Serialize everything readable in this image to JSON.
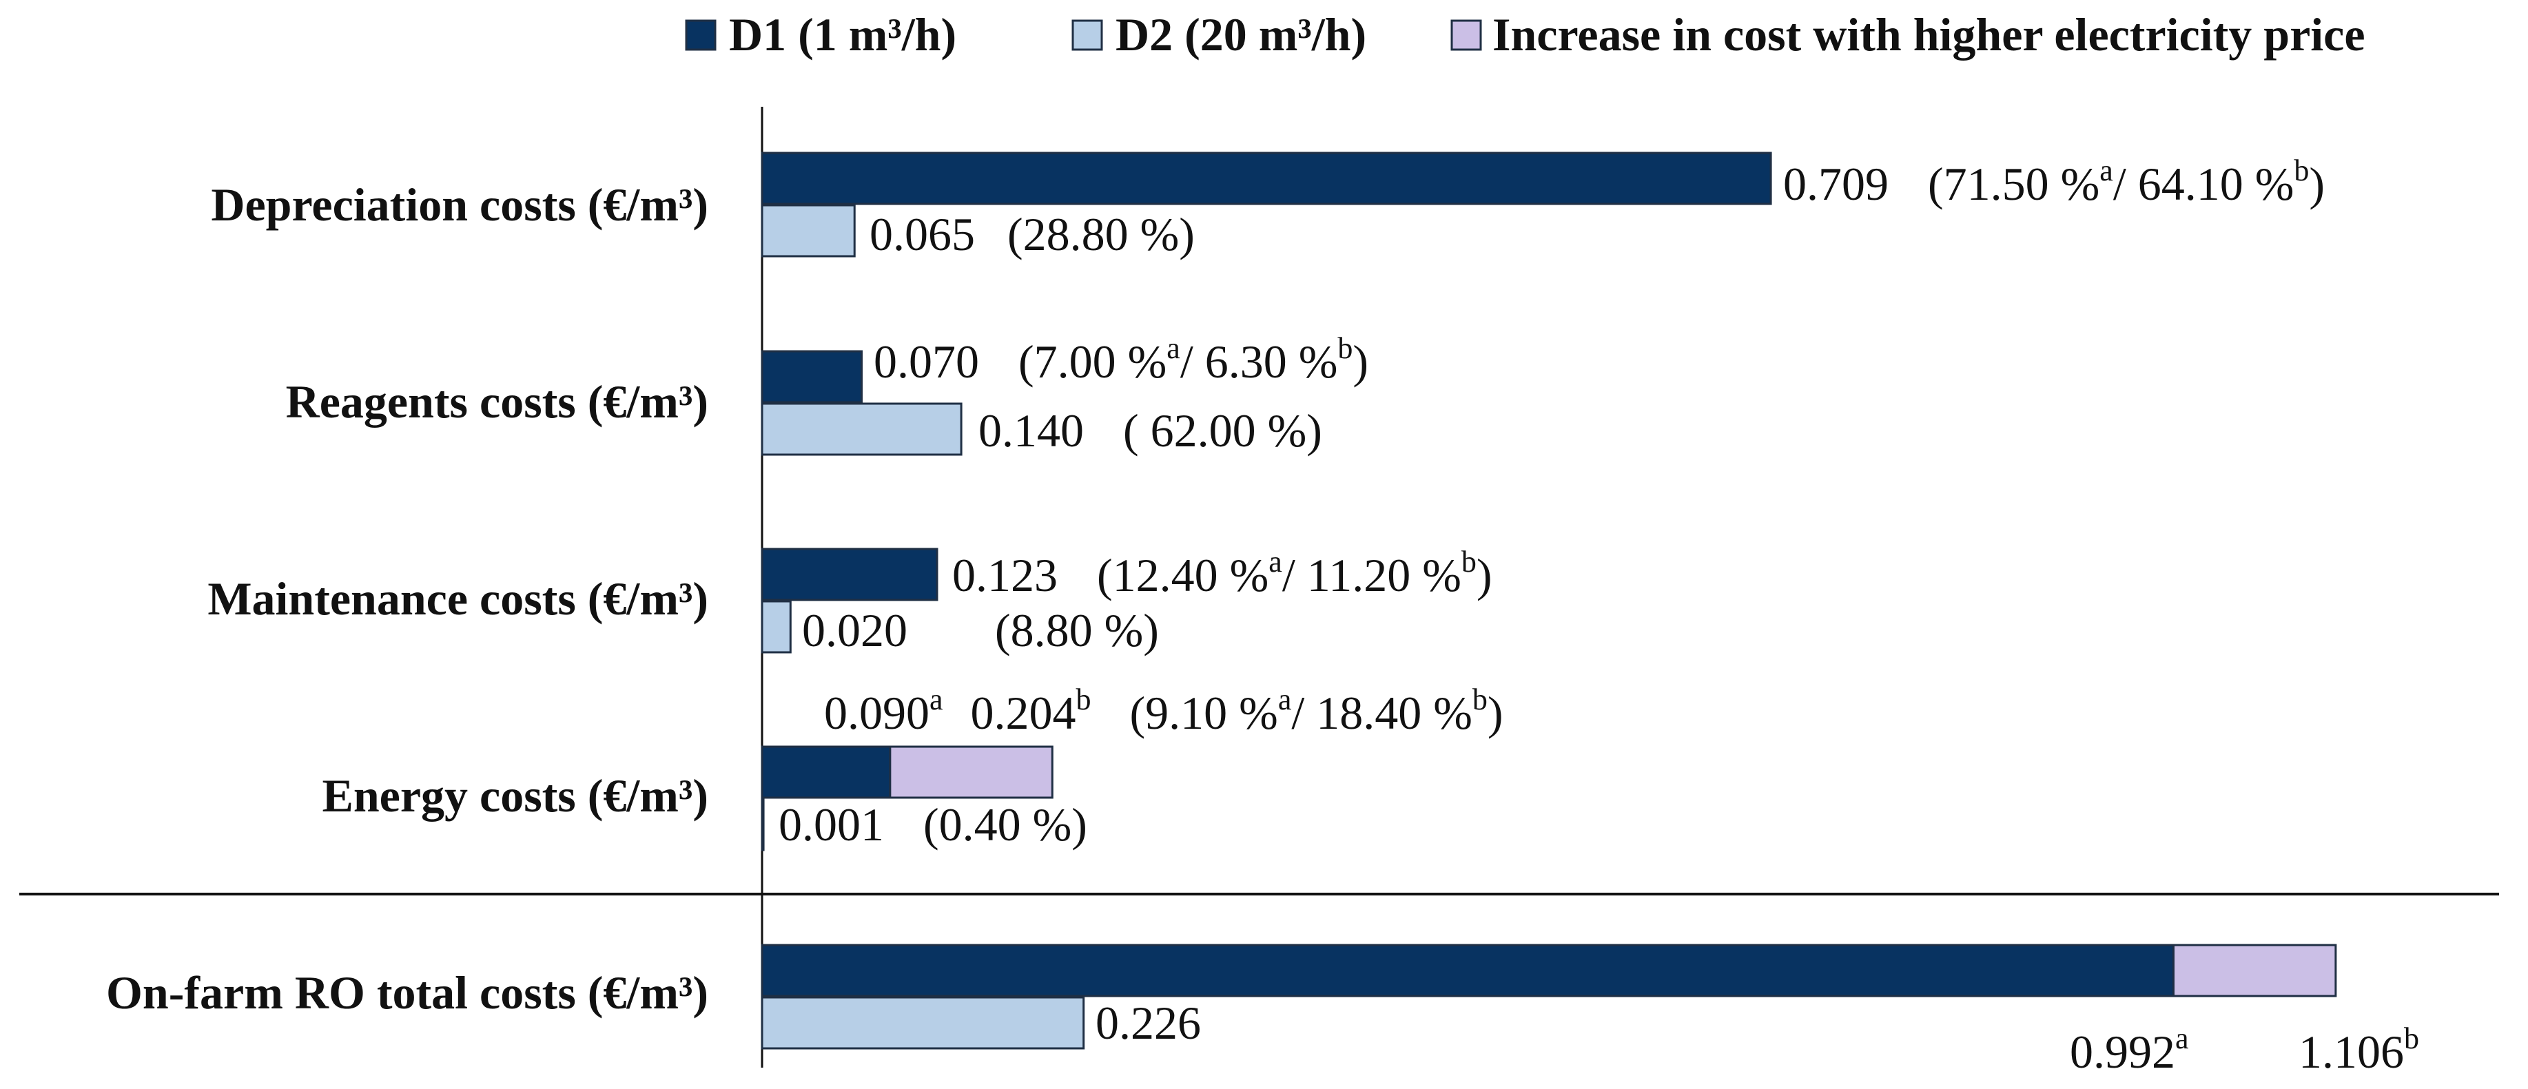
{
  "chart_data": {
    "type": "bar",
    "orientation": "horizontal",
    "title": "",
    "xlabel": "",
    "ylabel": "",
    "xlim": [
      0,
      1.6
    ],
    "grid": false,
    "legend_position": "top",
    "colors": {
      "d1": "#083361",
      "d2": "#b7cfe7",
      "increase": "#cbbfe6",
      "axis": "#111111"
    },
    "legend": [
      {
        "key": "d1",
        "label": "D1 (1 m³/h)"
      },
      {
        "key": "d2",
        "label": "D2 (20 m³/h)"
      },
      {
        "key": "increase",
        "label": "Increase in cost with higher electricity price"
      }
    ],
    "categories": [
      "Depreciation costs (€/m³)",
      "Reagents costs (€/m³)",
      "Maintenance costs (€/m³)",
      "Energy costs (€/m³)",
      "On-farm RO total costs (€/m³)"
    ],
    "series": [
      {
        "name": "D1 (1 m³/h)",
        "key": "d1",
        "values": [
          0.709,
          0.07,
          0.123,
          0.09,
          0.992
        ]
      },
      {
        "name": "D2 (20 m³/h)",
        "key": "d2",
        "values": [
          0.065,
          0.14,
          0.02,
          0.001,
          0.226
        ]
      },
      {
        "name": "Increase in cost with higher electricity price",
        "key": "increase",
        "stacked_on": "d1",
        "values": [
          0,
          0,
          0,
          0.114,
          0.114
        ]
      }
    ],
    "annotations": {
      "depreciation": {
        "d1": {
          "value": "0.709",
          "pct_a": "(71.50 %",
          "sup_a": "a",
          "pct_b": "/ 64.10 %",
          "sup_b": "b",
          "close": ")"
        },
        "d2": {
          "value": "0.065",
          "pct": "(28.80 %)"
        }
      },
      "reagents": {
        "d1": {
          "value": "0.070",
          "pct_a": "(7.00 %",
          "sup_a": "a",
          "pct_b": "/ 6.30 %",
          "sup_b": "b",
          "close": ")"
        },
        "d2": {
          "value": "0.140",
          "pct": "( 62.00 %)"
        }
      },
      "maintenance": {
        "d1": {
          "value": "0.123",
          "pct_a": "(12.40 %",
          "sup_a": "a",
          "pct_b": "/ 11.20 %",
          "sup_b": "b",
          "close": ")"
        },
        "d2": {
          "value": "0.020",
          "pct": "(8.80 %)"
        }
      },
      "energy": {
        "d1": {
          "value_a": "0.090",
          "sup_a": "a",
          "value_b": "0.204",
          "sup_b": "b",
          "pct_a": "(9.10 %",
          "sup_pa": "a",
          "pct_b": "/ 18.40 %",
          "sup_pb": "b",
          "close": ")"
        },
        "d2": {
          "value": "0.001",
          "pct": "(0.40 %)"
        }
      },
      "total": {
        "d2": {
          "value": "0.226"
        },
        "d1_a": {
          "value": "0.992",
          "sup": "a"
        },
        "d1_b": {
          "value": "1.106",
          "sup": "b"
        }
      }
    }
  }
}
